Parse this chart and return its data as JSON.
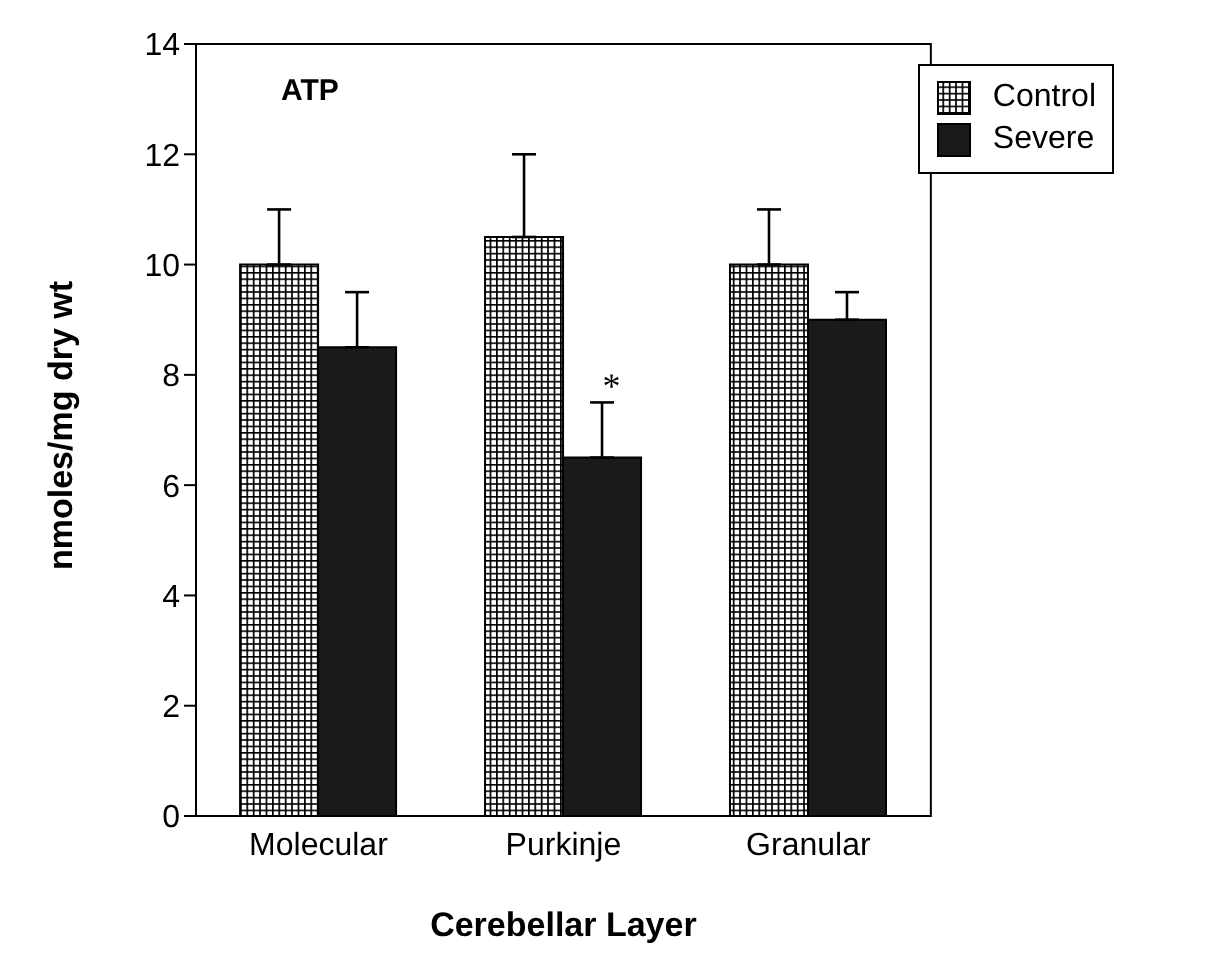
{
  "chart_data": {
    "type": "bar",
    "xlabel": "Cerebellar Layer",
    "ylabel": "nmoles/mg dry wt",
    "categories": [
      "Molecular",
      "Purkinje",
      "Granular"
    ],
    "series": [
      {
        "name": "Control",
        "color": "#000000",
        "values": [
          10,
          10.5,
          10
        ],
        "errors": [
          [
            10,
            11
          ],
          [
            10.5,
            12
          ],
          [
            10,
            11
          ]
        ]
      },
      {
        "name": "Severe",
        "color": "#1a1a1a",
        "values": [
          8.5,
          6.5,
          9
        ],
        "errors": [
          [
            8.5,
            9.5
          ],
          [
            6.5,
            7.5
          ],
          [
            9,
            9.5
          ]
        ]
      }
    ],
    "ylim": [
      0,
      14
    ],
    "yticks": [
      0,
      2,
      4,
      6,
      8,
      10,
      12,
      14
    ],
    "grid": false,
    "legend": "top right",
    "annotations": [
      "ATP",
      {
        "text": "*",
        "x": "Purkinje",
        "y": 7.5
      }
    ]
  }
}
